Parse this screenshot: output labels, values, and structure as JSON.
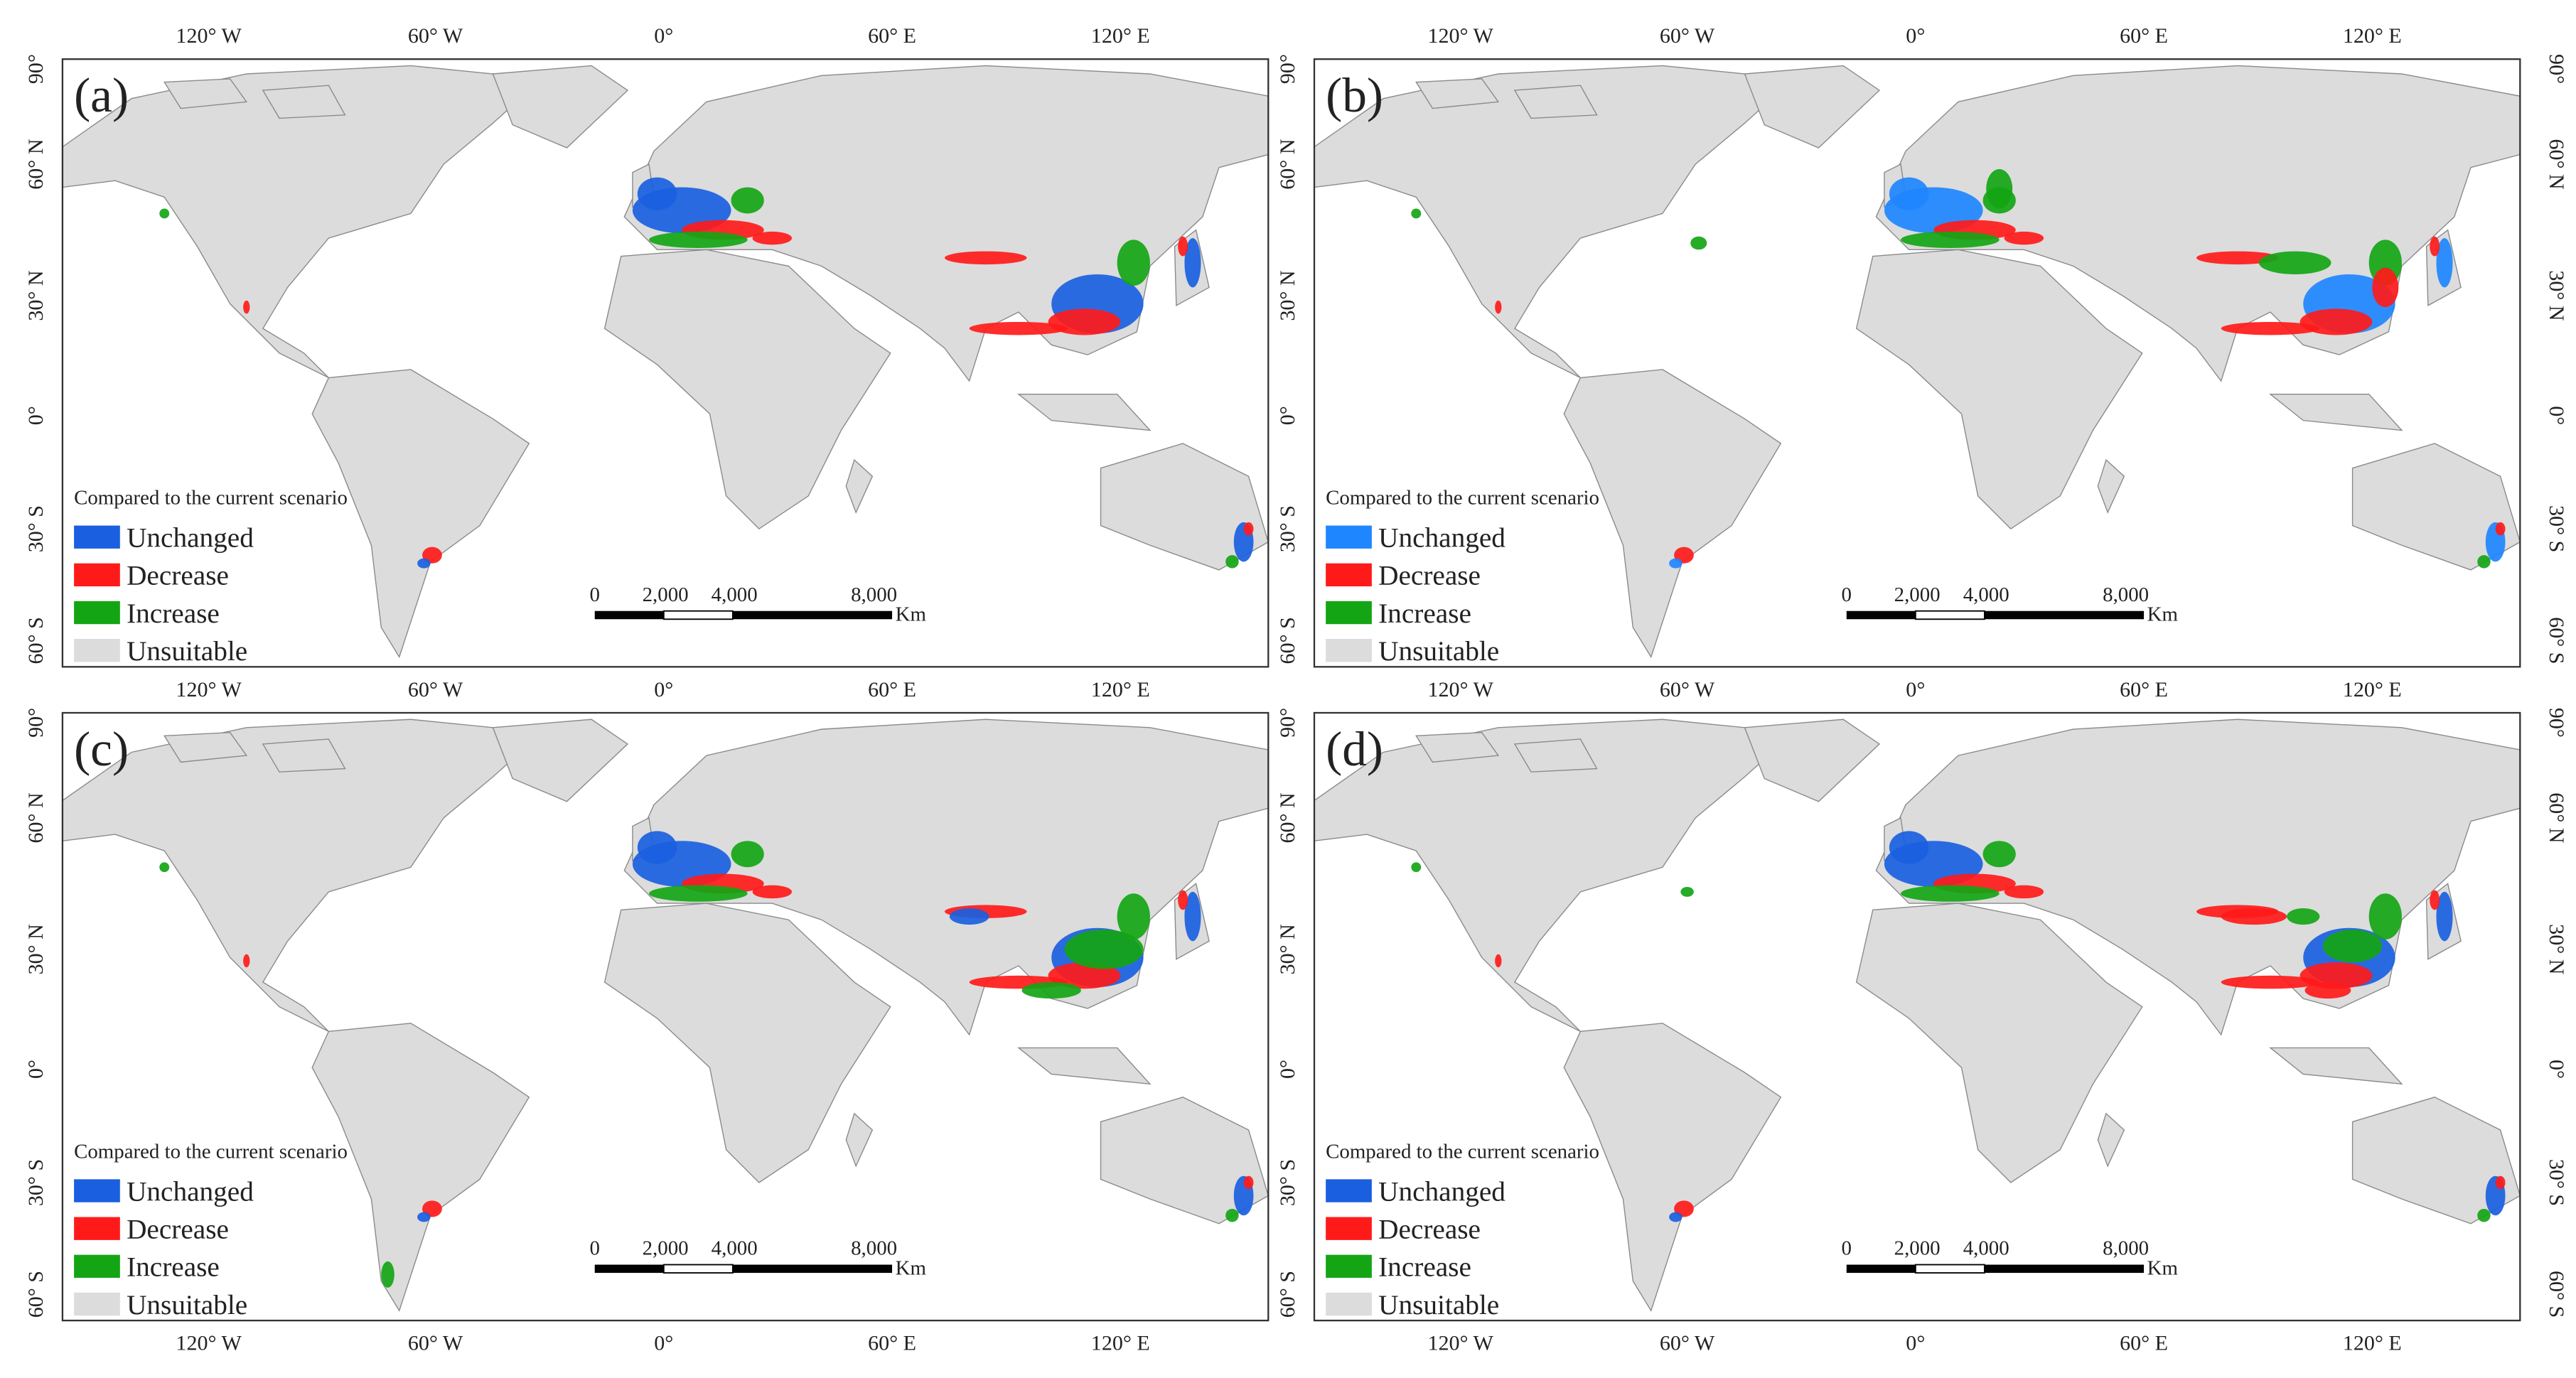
{
  "panels": [
    {
      "label": "(a)",
      "legend_title": "Compared to the current scenario",
      "legend": [
        {
          "label": "Unchanged",
          "color": "#1a5fe0"
        },
        {
          "label": "Decrease",
          "color": "#ff1a1a"
        },
        {
          "label": "Increase",
          "color": "#14a514"
        },
        {
          "label": "Unsuitable",
          "color": "#dcdcdc"
        }
      ]
    },
    {
      "label": "(b)",
      "legend_title": "Compared to the current scenario",
      "legend": [
        {
          "label": "Unchanged",
          "color": "#1e86ff"
        },
        {
          "label": "Decrease",
          "color": "#ff1a1a"
        },
        {
          "label": "Increase",
          "color": "#14a514"
        },
        {
          "label": "Unsuitable",
          "color": "#dcdcdc"
        }
      ]
    },
    {
      "label": "(c)",
      "legend_title": "Compared to the current scenario",
      "legend": [
        {
          "label": "Unchanged",
          "color": "#1a5fe0"
        },
        {
          "label": "Decrease",
          "color": "#ff1a1a"
        },
        {
          "label": "Increase",
          "color": "#14a514"
        },
        {
          "label": "Unsuitable",
          "color": "#dcdcdc"
        }
      ]
    },
    {
      "label": "(d)",
      "legend_title": "Compared to the current scenario",
      "legend": [
        {
          "label": "Unchanged",
          "color": "#1a5fe0"
        },
        {
          "label": "Decrease",
          "color": "#ff1a1a"
        },
        {
          "label": "Increase",
          "color": "#14a514"
        },
        {
          "label": "Unsuitable",
          "color": "#dcdcdc"
        }
      ]
    }
  ],
  "lon_labels": [
    "120° W",
    "60° W",
    "0°",
    "60° E",
    "120° E"
  ],
  "lat_labels": [
    "90°",
    "60° N",
    "30° N",
    "0°",
    "30° S",
    "60° S"
  ],
  "scale_labels": [
    "0",
    "2,000",
    "4,000",
    "8,000"
  ],
  "scale_unit": "Km"
}
